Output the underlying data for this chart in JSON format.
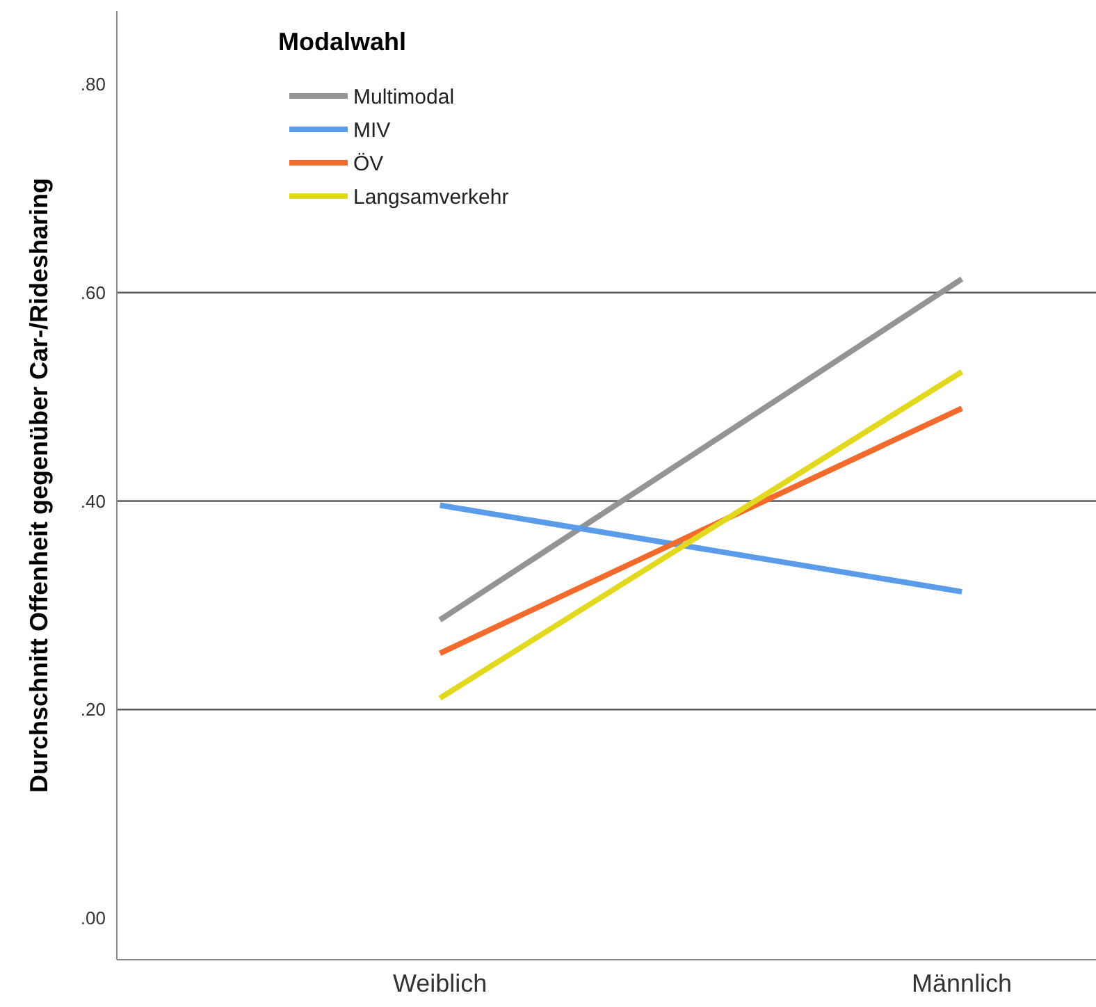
{
  "chart_data": {
    "type": "line",
    "ylabel": "Durchschnitt Offenheit gegenüber Car-/Ridesharing",
    "legend_title": "Modalwahl",
    "legend": "top left",
    "categories": [
      "Weiblich",
      "Männlich"
    ],
    "ylim": [
      -0.04,
      0.87
    ],
    "yticks": [
      {
        "value": 0,
        "label": ".00"
      },
      {
        "value": 0.2,
        "label": ".20"
      },
      {
        "value": 0.4,
        "label": ".40"
      },
      {
        "value": 0.6,
        "label": ".60"
      },
      {
        "value": 0.8,
        "label": ".80"
      }
    ],
    "ref_lines": [
      {
        "axis": "y",
        "value": 0.2,
        "color": "#5a5a5a"
      },
      {
        "axis": "y",
        "value": 0.4,
        "color": "#5a5a5a"
      },
      {
        "axis": "y",
        "value": 0.6,
        "color": "#5a5a5a"
      }
    ],
    "series": [
      {
        "name": "Multimodal",
        "color": "#949494",
        "values": [
          0.286,
          0.613
        ]
      },
      {
        "name": "MIV",
        "color": "#5a9bea",
        "values": [
          0.396,
          0.313
        ]
      },
      {
        "name": "ÖV",
        "color": "#f26a2c",
        "values": [
          0.254,
          0.489
        ]
      },
      {
        "name": "Langsamverkehr",
        "color": "#e2d91e",
        "values": [
          0.211,
          0.524
        ]
      }
    ]
  }
}
